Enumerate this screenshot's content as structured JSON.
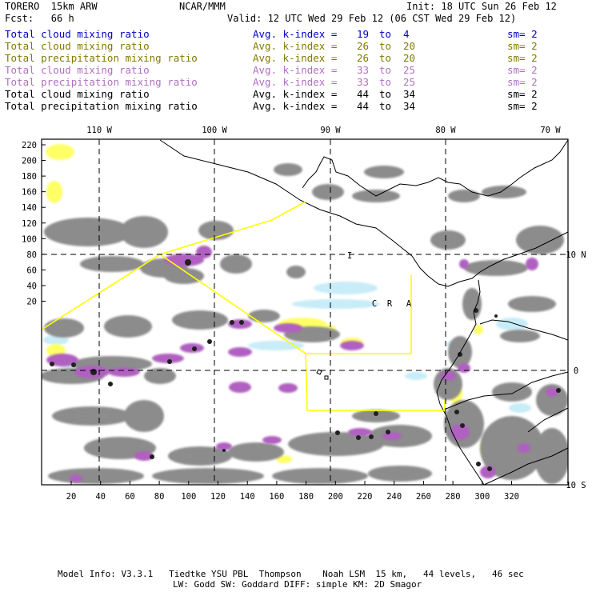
{
  "header": {
    "model": "TORERO  15km ARW",
    "org": "NCAR/MMM",
    "init": "Init: 18 UTC Sun 26 Feb 12",
    "fcst": "Fcst:   66 h",
    "valid": "Valid: 12 UTC Wed 29 Feb 12 (06 CST Wed 29 Feb 12)"
  },
  "legend": [
    {
      "field": "Total cloud mixing ratio",
      "kindex": "Avg. k-index =",
      "a": "19",
      "to": "to",
      "b": "4",
      "sm": "sm= 2",
      "color": "#0000cc"
    },
    {
      "field": "Total cloud mixing ratio",
      "kindex": "Avg. k-index =",
      "a": "26",
      "to": "to",
      "b": "20",
      "sm": "sm= 2",
      "color": "#807a00"
    },
    {
      "field": "Total precipitation mixing ratio",
      "kindex": "Avg. k-index =",
      "a": "26",
      "to": "to",
      "b": "20",
      "sm": "sm= 2",
      "color": "#807a00"
    },
    {
      "field": "Total cloud mixing ratio",
      "kindex": "Avg. k-index =",
      "a": "33",
      "to": "to",
      "b": "25",
      "sm": "sm= 2",
      "color": "#b070c0"
    },
    {
      "field": "Total precipitation mixing ratio",
      "kindex": "Avg. k-index =",
      "a": "33",
      "to": "to",
      "b": "25",
      "sm": "sm= 2",
      "color": "#b070c0"
    },
    {
      "field": "Total cloud mixing ratio",
      "kindex": "Avg. k-index =",
      "a": "44",
      "to": "to",
      "b": "34",
      "sm": "sm= 2",
      "color": "#000000"
    },
    {
      "field": "Total precipitation mixing ratio",
      "kindex": "Avg. k-index =",
      "a": "44",
      "to": "to",
      "b": "34",
      "sm": "sm= 2",
      "color": "#000000"
    }
  ],
  "map": {
    "lon_labels": [
      "110 W",
      "100 W",
      "90 W",
      "80 W",
      "70 W"
    ],
    "lat_labels": [
      "10 N",
      "0",
      "10 S"
    ],
    "y_ticks": [
      "220",
      "200",
      "180",
      "160",
      "140",
      "120",
      "100",
      "80",
      "60",
      "40",
      "20"
    ],
    "x_ticks": [
      "20",
      "40",
      "60",
      "80",
      "100",
      "120",
      "140",
      "160",
      "180",
      "200",
      "220",
      "240",
      "260",
      "280",
      "300",
      "320"
    ],
    "yellow_letters": [
      "I",
      "C",
      "R",
      "A"
    ],
    "colors": {
      "gray": "#8c8c8c",
      "purple": "#b060c0",
      "yellow": "#ffff66",
      "lightblue": "#c8ecf8",
      "domain": "#ffff00"
    }
  },
  "footer": {
    "line1": "Model Info: V3.3.1   Tiedtke YSU PBL  Thompson    Noah LSM  15 km,   44 levels,   46 sec",
    "line2": "LW: Godd SW: Goddard DIFF: simple KM: 2D Smagor"
  }
}
